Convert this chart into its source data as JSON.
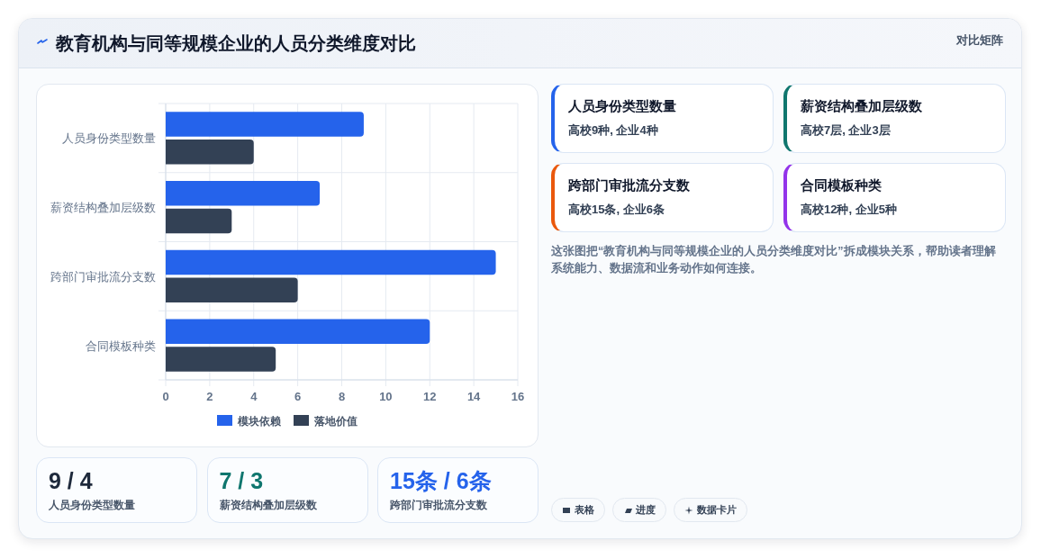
{
  "chart_data": [
    {
      "type": "other",
      "title": "教育机构与同等规模企业的人员分类维度对比",
      "annotations": [
        "对比矩阵"
      ]
    },
    {
      "type": "bar",
      "orientation": "horizontal",
      "categories": [
        "人员身份类型数量",
        "薪资结构叠加层级数",
        "跨部门审批流分支数",
        "合同模板种类"
      ],
      "series": [
        {
          "name": "模块依赖",
          "color": "#2563eb",
          "values": [
            9,
            7,
            15,
            12
          ]
        },
        {
          "name": "落地价值",
          "color": "#334155",
          "values": [
            4,
            3,
            6,
            5
          ]
        }
      ],
      "xlim": [
        0,
        16
      ],
      "xticks": [
        0,
        2,
        4,
        6,
        8,
        10,
        12,
        14,
        16
      ],
      "grid": true,
      "legend": "bottom"
    },
    {
      "type": "other",
      "annotations": [
        "人员身份类型数量",
        "高校9种, 企业4种",
        "薪资结构叠加层级数",
        "高校7层, 企业3层",
        "跨部门审批流分支数",
        "高校15条, 企业6条",
        "合同模板种类",
        "高校12种, 企业5种",
        "这张图把“教育机构与同等规模企业的人员分类维度对比”拆成模块关系，帮助读者理解系统能力、数据流和业务动作如何连接。"
      ]
    },
    {
      "type": "other",
      "annotations": [
        "9 / 4",
        "人员身份类型数量",
        "7 / 3",
        "薪资结构叠加层级数",
        "15条 / 6条",
        "跨部门审批流分支数"
      ]
    },
    {
      "type": "other",
      "annotations": [
        "表格",
        "进度",
        "数据卡片"
      ]
    }
  ]
}
